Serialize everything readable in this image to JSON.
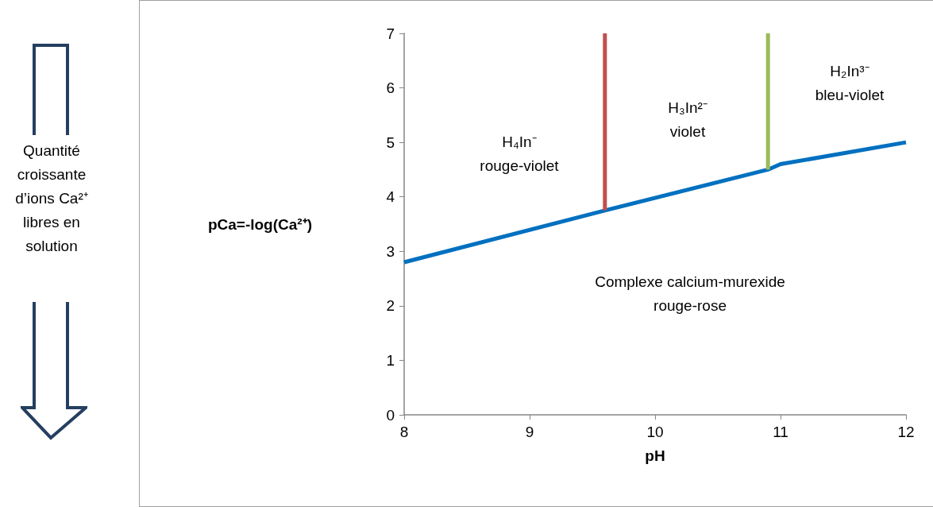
{
  "chart_data": {
    "type": "line",
    "xlabel": "pH",
    "ylabel": "pCa=-log(Ca²⁺)",
    "xlim": [
      8,
      12
    ],
    "xticks": [
      8,
      9,
      10,
      11,
      12
    ],
    "ylim": [
      0,
      7
    ],
    "yticks": [
      0,
      1,
      2,
      3,
      4,
      5,
      6,
      7
    ],
    "grid": false,
    "marker": "none",
    "line_style": "solid",
    "series": [
      {
        "color": "#0070c0",
        "x": [
          8,
          9.6,
          10.9,
          11,
          12
        ],
        "values": [
          2.8,
          3.75,
          4.5,
          4.6,
          5.0
        ]
      },
      {
        "color": "#c0504d",
        "x": [
          9.6,
          9.6
        ],
        "values": [
          3.75,
          7
        ]
      },
      {
        "color": "#9bbb59",
        "x": [
          10.9,
          10.9
        ],
        "values": [
          4.5,
          7
        ]
      }
    ],
    "annotations": [
      "H₄In⁻\nrouge-violet",
      "H₃In²⁻\nviolet",
      "H₂In³⁻\nbleu-violet",
      "Complexe calcium-murexide\nrouge-rose",
      "Quantité croissante d’ions Ca²⁺ libres en solution"
    ]
  }
}
